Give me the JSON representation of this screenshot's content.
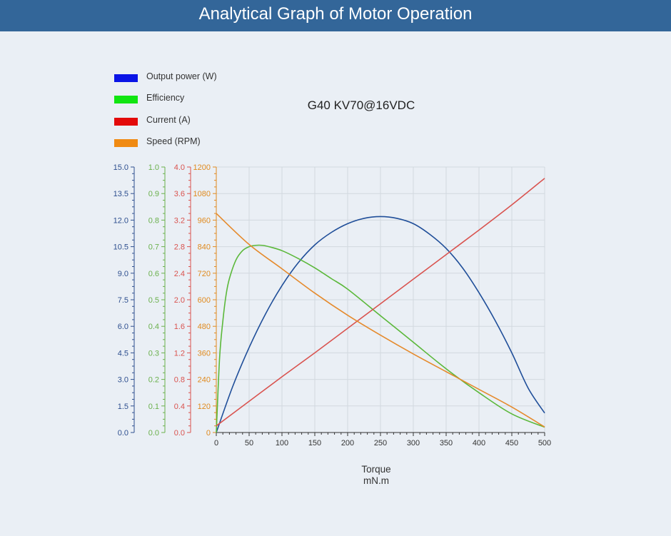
{
  "header": {
    "title": "Analytical Graph of Motor Operation"
  },
  "chart_data": {
    "type": "line",
    "title": "G40 KV70@16VDC",
    "xlabel": "Torque",
    "xunit": "mN.m",
    "xlim": [
      0,
      500
    ],
    "xticks": [
      0,
      50,
      100,
      150,
      200,
      250,
      300,
      350,
      400,
      450,
      500
    ],
    "grid": true,
    "legend_position": "top-left",
    "axes": [
      {
        "series": "Output power (W)",
        "color": "#2e4f8f",
        "ylim": [
          0,
          15
        ],
        "ticks": [
          "0.0",
          "1.5",
          "3.0",
          "4.5",
          "6.0",
          "7.5",
          "9.0",
          "10.5",
          "12.0",
          "13.5",
          "15.0"
        ]
      },
      {
        "series": "Efficiency",
        "color": "#6ab04c",
        "ylim": [
          0,
          1
        ],
        "ticks": [
          "0.0",
          "0.1",
          "0.2",
          "0.3",
          "0.4",
          "0.5",
          "0.6",
          "0.7",
          "0.8",
          "0.9",
          "1.0"
        ]
      },
      {
        "series": "Current (A)",
        "color": "#d9534f",
        "ylim": [
          0,
          4
        ],
        "ticks": [
          "0.0",
          "0.4",
          "0.8",
          "1.2",
          "1.6",
          "2.0",
          "2.4",
          "2.8",
          "3.2",
          "3.6",
          "4.0"
        ]
      },
      {
        "series": "Speed (RPM)",
        "color": "#e08a1e",
        "ylim": [
          0,
          1200
        ],
        "ticks": [
          "0",
          "120",
          "240",
          "360",
          "480",
          "600",
          "720",
          "840",
          "960",
          "1080",
          "1200"
        ]
      }
    ],
    "series": [
      {
        "name": "Output power (W)",
        "legend_color": "#0a14e6",
        "line_color": "#1f4e99",
        "x": [
          0,
          25,
          50,
          75,
          100,
          125,
          150,
          175,
          200,
          225,
          250,
          275,
          300,
          325,
          350,
          375,
          400,
          425,
          450,
          475,
          500
        ],
        "y": [
          0,
          2.6,
          4.8,
          6.7,
          8.3,
          9.6,
          10.6,
          11.3,
          11.8,
          12.1,
          12.2,
          12.1,
          11.8,
          11.2,
          10.4,
          9.3,
          7.9,
          6.3,
          4.5,
          2.5,
          1.1
        ]
      },
      {
        "name": "Efficiency",
        "legend_color": "#11e511",
        "line_color": "#5bb83a",
        "x": [
          0,
          5,
          10,
          15,
          20,
          30,
          40,
          50,
          60,
          70,
          80,
          100,
          125,
          150,
          175,
          200,
          250,
          300,
          350,
          400,
          450,
          500
        ],
        "y": [
          0,
          0.28,
          0.42,
          0.52,
          0.58,
          0.65,
          0.685,
          0.7,
          0.705,
          0.705,
          0.7,
          0.685,
          0.655,
          0.62,
          0.58,
          0.54,
          0.44,
          0.34,
          0.24,
          0.15,
          0.07,
          0.02
        ]
      },
      {
        "name": "Current (A)",
        "legend_color": "#e30a0a",
        "line_color": "#d9534f",
        "x": [
          0,
          50,
          100,
          150,
          200,
          250,
          300,
          350,
          400,
          450,
          500
        ],
        "y": [
          0.1,
          0.47,
          0.84,
          1.2,
          1.57,
          1.94,
          2.31,
          2.68,
          3.05,
          3.43,
          3.83
        ]
      },
      {
        "name": "Speed (RPM)",
        "legend_color": "#f08a12",
        "line_color": "#e58a2c",
        "x": [
          0,
          50,
          100,
          150,
          200,
          250,
          300,
          350,
          400,
          450,
          500
        ],
        "y": [
          990,
          850,
          740,
          630,
          530,
          440,
          355,
          275,
          195,
          115,
          25
        ]
      }
    ]
  }
}
